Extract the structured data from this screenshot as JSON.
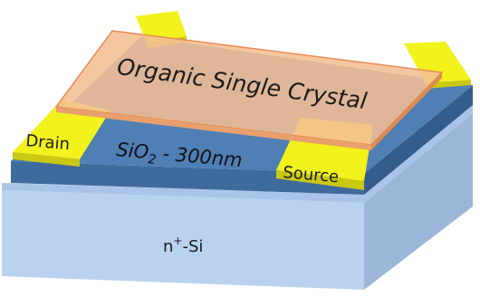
{
  "labels": {
    "crystal": "Organic Single Crystal",
    "drain": "Drain",
    "source": "Source",
    "oxide_main": "SiO",
    "oxide_sub": "2",
    "oxide_rest": " - 300nm",
    "substrate_main": "n",
    "substrate_sup": "+",
    "substrate_rest": "-Si"
  },
  "colors": {
    "substrate_top": "#a9c4e8",
    "substrate_front": "#b9d2f0",
    "substrate_side": "#9cb6da",
    "oxide_top": "#4f7fb5",
    "oxide_front": "#3f6a9c",
    "oxide_side": "#355d8b",
    "electrode": "#f2f21c",
    "electrode_dark": "#c9c912",
    "crystal": "#f4bf94",
    "crystal_edge": "#e58a54"
  }
}
